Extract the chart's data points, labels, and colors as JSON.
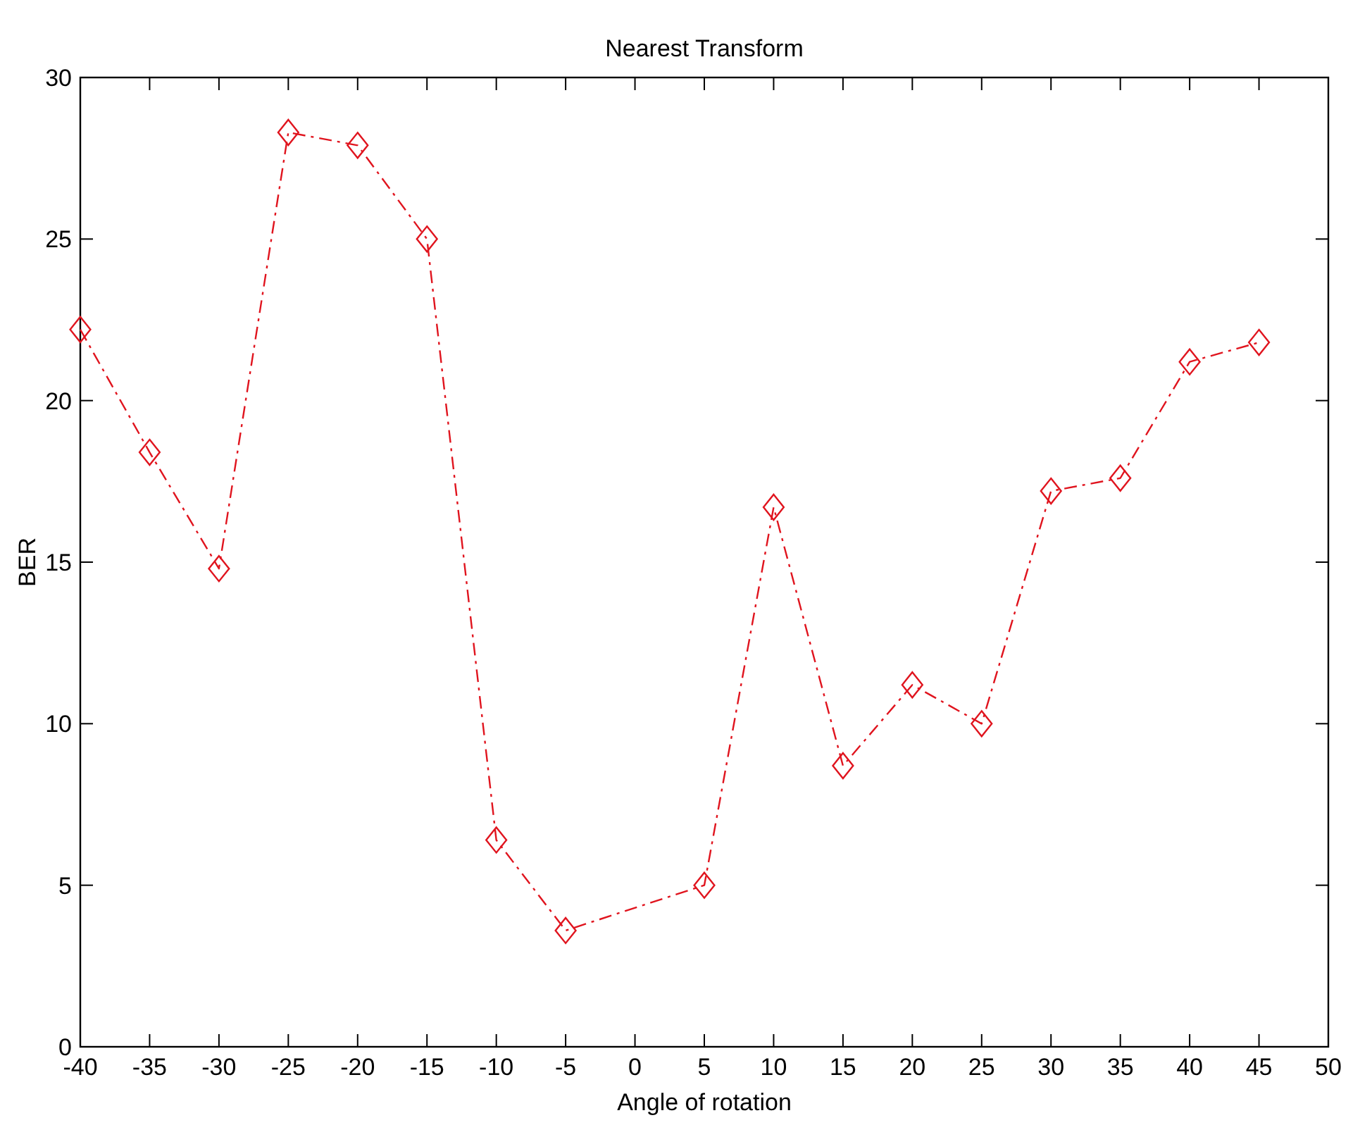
{
  "chart_data": {
    "type": "line",
    "title": "Nearest Transform",
    "xlabel": "Angle of rotation",
    "ylabel": "BER",
    "x": [
      -40,
      -35,
      -30,
      -25,
      -20,
      -15,
      -10,
      -5,
      5,
      10,
      15,
      20,
      25,
      30,
      35,
      40,
      45
    ],
    "series": [
      {
        "color": "#e0141e",
        "values": [
          22.2,
          18.4,
          14.8,
          28.3,
          27.9,
          25.0,
          6.4,
          3.6,
          5.0,
          16.7,
          8.7,
          11.2,
          10.0,
          17.2,
          17.6,
          21.2,
          21.8
        ]
      }
    ],
    "xlim": [
      -40,
      50
    ],
    "xticks": [
      -40,
      -35,
      -30,
      -25,
      -20,
      -15,
      -10,
      -5,
      0,
      5,
      10,
      15,
      20,
      25,
      30,
      35,
      40,
      45,
      50
    ],
    "ylim": [
      0,
      30
    ],
    "yticks": [
      0,
      5,
      10,
      15,
      20,
      25,
      30
    ],
    "grid": false,
    "marker": "diamond",
    "line_style": "dashed"
  }
}
